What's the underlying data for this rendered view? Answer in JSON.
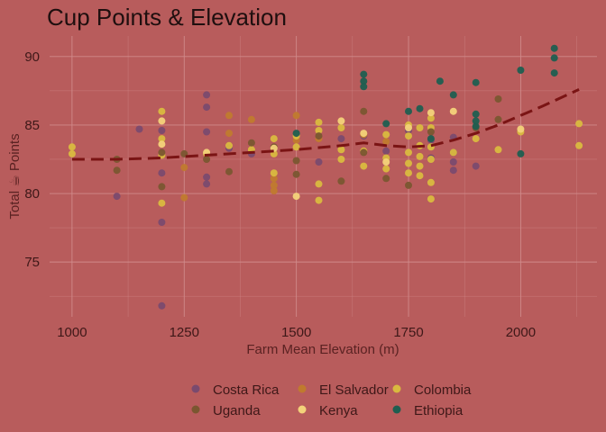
{
  "chart_data": {
    "type": "scatter",
    "title": "Cup Points & Elevation",
    "xlabel": "Farm Mean Elevation (m)",
    "ylabel": "Total ☕ Points",
    "xlim": [
      950,
      2170
    ],
    "ylim": [
      71,
      91.5
    ],
    "xticks": [
      1000,
      1250,
      1500,
      1750,
      2000
    ],
    "yticks": [
      75,
      80,
      85,
      90
    ],
    "grid": true,
    "legend_position": "bottom",
    "colors": {
      "background": "#B85C5C",
      "grid": "#D08A8A",
      "trend": "#7A1414"
    },
    "series": [
      {
        "name": "Costa Rica",
        "color": "#7A4A6E",
        "points": [
          [
            1100,
            79.8
          ],
          [
            1150,
            84.7
          ],
          [
            1200,
            84.6
          ],
          [
            1200,
            81.5
          ],
          [
            1200,
            77.9
          ],
          [
            1200,
            71.8
          ],
          [
            1300,
            87.2
          ],
          [
            1300,
            86.3
          ],
          [
            1300,
            84.5
          ],
          [
            1300,
            81.2
          ],
          [
            1300,
            80.7
          ],
          [
            1350,
            83.3
          ],
          [
            1400,
            82.9
          ],
          [
            1550,
            82.3
          ],
          [
            1600,
            84.0
          ],
          [
            1650,
            84.2
          ],
          [
            1700,
            83.1
          ],
          [
            1750,
            84.6
          ],
          [
            1800,
            83.9
          ],
          [
            1800,
            82.6
          ],
          [
            1850,
            84.1
          ],
          [
            1850,
            83.0
          ],
          [
            1850,
            82.3
          ],
          [
            1850,
            81.7
          ],
          [
            1900,
            82.0
          ]
        ]
      },
      {
        "name": "El Salvador",
        "color": "#C07A2E",
        "points": [
          [
            1250,
            81.9
          ],
          [
            1250,
            79.7
          ],
          [
            1350,
            85.7
          ],
          [
            1350,
            84.4
          ],
          [
            1400,
            85.4
          ],
          [
            1450,
            81.1
          ],
          [
            1450,
            80.6
          ],
          [
            1450,
            80.2
          ],
          [
            1500,
            85.7
          ],
          [
            1500,
            83.9
          ],
          [
            1550,
            84.0
          ],
          [
            1650,
            84.3
          ],
          [
            1700,
            83.8
          ]
        ]
      },
      {
        "name": "Colombia",
        "color": "#D9B93F",
        "points": [
          [
            1000,
            83.4
          ],
          [
            1000,
            82.9
          ],
          [
            1200,
            86.0
          ],
          [
            1200,
            84.0
          ],
          [
            1200,
            82.8
          ],
          [
            1200,
            79.3
          ],
          [
            1300,
            82.9
          ],
          [
            1350,
            83.5
          ],
          [
            1400,
            83.2
          ],
          [
            1450,
            84.0
          ],
          [
            1450,
            82.9
          ],
          [
            1450,
            81.5
          ],
          [
            1500,
            84.2
          ],
          [
            1500,
            83.4
          ],
          [
            1550,
            85.2
          ],
          [
            1550,
            84.6
          ],
          [
            1550,
            80.7
          ],
          [
            1550,
            79.5
          ],
          [
            1600,
            84.8
          ],
          [
            1600,
            83.2
          ],
          [
            1600,
            82.5
          ],
          [
            1650,
            83.1
          ],
          [
            1650,
            82.0
          ],
          [
            1700,
            84.3
          ],
          [
            1700,
            82.6
          ],
          [
            1700,
            81.8
          ],
          [
            1750,
            85.0
          ],
          [
            1750,
            84.2
          ],
          [
            1750,
            83.0
          ],
          [
            1750,
            82.2
          ],
          [
            1750,
            81.5
          ],
          [
            1775,
            84.8
          ],
          [
            1775,
            83.5
          ],
          [
            1775,
            82.7
          ],
          [
            1775,
            82.0
          ],
          [
            1775,
            81.3
          ],
          [
            1800,
            85.5
          ],
          [
            1800,
            84.8
          ],
          [
            1800,
            83.4
          ],
          [
            1800,
            82.5
          ],
          [
            1800,
            80.8
          ],
          [
            1800,
            79.6
          ],
          [
            1850,
            83.0
          ],
          [
            1900,
            84.0
          ],
          [
            1950,
            83.2
          ],
          [
            2000,
            84.5
          ],
          [
            2130,
            85.1
          ],
          [
            2130,
            83.5
          ]
        ]
      },
      {
        "name": "Uganda",
        "color": "#7A5630",
        "points": [
          [
            1100,
            82.5
          ],
          [
            1100,
            81.7
          ],
          [
            1200,
            80.5
          ],
          [
            1200,
            83.0
          ],
          [
            1250,
            82.9
          ],
          [
            1300,
            82.5
          ],
          [
            1350,
            81.6
          ],
          [
            1400,
            83.7
          ],
          [
            1450,
            83.4
          ],
          [
            1500,
            81.4
          ],
          [
            1500,
            82.4
          ],
          [
            1550,
            84.2
          ],
          [
            1600,
            80.9
          ],
          [
            1650,
            86.0
          ],
          [
            1650,
            83.0
          ],
          [
            1700,
            81.1
          ],
          [
            1750,
            80.6
          ],
          [
            1800,
            84.5
          ],
          [
            1900,
            84.8
          ],
          [
            1950,
            86.9
          ],
          [
            1950,
            85.4
          ]
        ]
      },
      {
        "name": "Kenya",
        "color": "#F3D27A",
        "points": [
          [
            1200,
            85.3
          ],
          [
            1200,
            83.6
          ],
          [
            1300,
            83.0
          ],
          [
            1450,
            83.3
          ],
          [
            1500,
            79.8
          ],
          [
            1600,
            85.3
          ],
          [
            1650,
            84.4
          ],
          [
            1700,
            82.3
          ],
          [
            1750,
            84.8
          ],
          [
            1800,
            85.9
          ],
          [
            1850,
            86.0
          ],
          [
            2000,
            84.7
          ]
        ]
      },
      {
        "name": "Ethiopia",
        "color": "#1F5E50",
        "points": [
          [
            1500,
            84.4
          ],
          [
            1650,
            88.7
          ],
          [
            1650,
            88.2
          ],
          [
            1650,
            87.8
          ],
          [
            1700,
            85.1
          ],
          [
            1750,
            86.0
          ],
          [
            1775,
            86.2
          ],
          [
            1800,
            84.0
          ],
          [
            1820,
            88.2
          ],
          [
            1850,
            87.2
          ],
          [
            1900,
            88.1
          ],
          [
            1900,
            85.8
          ],
          [
            1900,
            85.3
          ],
          [
            1900,
            84.9
          ],
          [
            2000,
            89.0
          ],
          [
            2000,
            82.9
          ],
          [
            2075,
            90.6
          ],
          [
            2075,
            89.9
          ],
          [
            2075,
            88.8
          ]
        ]
      }
    ],
    "trend": {
      "style": "dashed",
      "x": [
        1000,
        1100,
        1200,
        1300,
        1400,
        1500,
        1600,
        1650,
        1700,
        1750,
        1800,
        1850,
        1900,
        1950,
        2000,
        2050,
        2130
      ],
      "y": [
        82.5,
        82.5,
        82.6,
        82.8,
        83.0,
        83.2,
        83.5,
        83.7,
        83.5,
        83.4,
        83.5,
        83.9,
        84.4,
        85.0,
        85.7,
        86.4,
        87.6
      ]
    }
  }
}
